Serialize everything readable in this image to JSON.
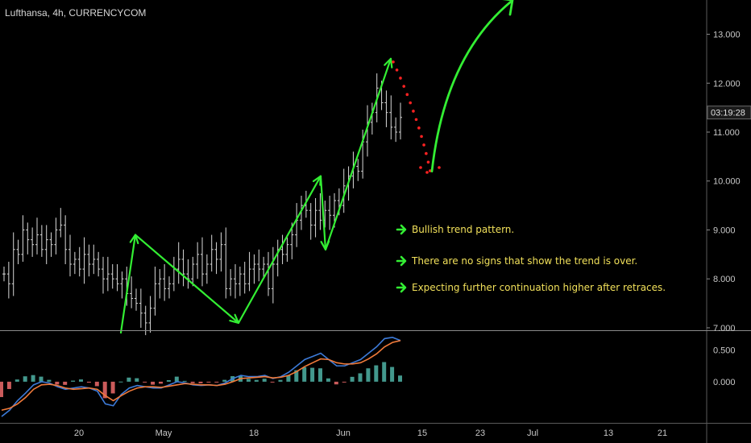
{
  "header": {
    "title": "Lufthansa, 4h, CURRENCYCOM"
  },
  "colors": {
    "background": "#000000",
    "price_bars": "#d9d9d9",
    "trend_lines": "#33ee33",
    "projection_dots": "#ff2222",
    "macd_line": "#3d7bd9",
    "signal_line": "#f07a3a",
    "hist_pos": "#4fb3a6",
    "hist_neg": "#ef6b6b",
    "hist_weak": "#ffffff",
    "note_text": "#f1e05a"
  },
  "price_badge": "03:19:28",
  "annotations": [
    {
      "icon": "green-right-arrow-icon",
      "text": "Bullish trend pattern."
    },
    {
      "icon": "green-right-arrow-icon",
      "text": "There are no signs that show the trend is over."
    },
    {
      "icon": "green-right-arrow-icon",
      "text": "Expecting further continuation higher after retraces."
    }
  ],
  "chart_data": [
    {
      "type": "bar",
      "subtype": "ohlc-price",
      "title": "Lufthansa, 4h, CURRENCYCOM",
      "ylim": [
        6.95,
        13.7
      ],
      "y_ticks": [
        "13.000",
        "12.000",
        "11.000",
        "10.000",
        "9.000",
        "8.000",
        "7.000"
      ],
      "x_ticks": [
        "20",
        "May",
        "18",
        "Jun",
        "15",
        "23",
        "Jul",
        "13",
        "21"
      ],
      "closes": [
        8.1,
        7.9,
        8.6,
        8.5,
        9.0,
        8.8,
        8.7,
        8.9,
        8.6,
        8.8,
        8.7,
        9.0,
        9.1,
        8.6,
        8.3,
        8.4,
        8.2,
        8.5,
        8.3,
        8.4,
        8.2,
        8.0,
        8.1,
        8.0,
        7.9,
        8.0,
        7.7,
        7.6,
        7.5,
        7.3,
        7.1,
        7.4,
        7.9,
        8.0,
        7.8,
        7.9,
        8.2,
        8.4,
        8.1,
        8.0,
        8.3,
        8.5,
        8.1,
        8.3,
        8.6,
        8.4,
        8.7,
        7.8,
        8.0,
        7.9,
        8.1,
        7.9,
        8.2,
        8.3,
        8.2,
        8.3,
        7.8,
        8.3,
        8.6,
        8.5,
        8.7,
        8.9,
        9.2,
        9.5,
        9.4,
        9.1,
        9.4,
        9.2,
        9.4,
        9.3,
        9.6,
        9.5,
        9.9,
        10.1,
        10.3,
        10.2,
        10.8,
        11.2,
        11.4,
        11.9,
        11.6,
        11.4,
        11.1,
        11.0,
        11.3
      ],
      "trend_pivots": [
        {
          "label": "Apr 27",
          "price": 6.9
        },
        {
          "label": "Apr 29",
          "price": 8.9
        },
        {
          "label": "May 15",
          "price": 7.1
        },
        {
          "label": "May 29",
          "price": 10.1
        },
        {
          "label": "May 31",
          "price": 8.6
        },
        {
          "label": "Jun 9",
          "price": 12.5
        }
      ],
      "projection": {
        "retrace_to": 10.1,
        "target_above": 13.6
      }
    },
    {
      "type": "line",
      "subtype": "macd",
      "ylim": [
        -0.65,
        0.8
      ],
      "y_ticks": [
        "0.500",
        "0.000"
      ],
      "series": [
        {
          "values": [
            -0.55,
            -0.45,
            -0.3,
            -0.18,
            -0.05,
            0.0,
            -0.02,
            -0.08,
            -0.12,
            -0.1,
            -0.08,
            -0.1,
            -0.15,
            -0.35,
            -0.38,
            -0.2,
            -0.1,
            -0.06,
            -0.08,
            -0.1,
            -0.1,
            -0.05,
            0.0,
            -0.02,
            -0.05,
            -0.06,
            -0.05,
            -0.06,
            -0.02,
            0.05,
            0.1,
            0.08,
            0.08,
            0.1,
            0.05,
            0.08,
            0.15,
            0.25,
            0.35,
            0.4,
            0.45,
            0.35,
            0.25,
            0.25,
            0.3,
            0.35,
            0.45,
            0.55,
            0.68,
            0.7,
            0.65
          ]
        },
        {
          "values": [
            -0.45,
            -0.42,
            -0.35,
            -0.25,
            -0.12,
            -0.05,
            -0.04,
            -0.06,
            -0.1,
            -0.12,
            -0.11,
            -0.1,
            -0.12,
            -0.22,
            -0.3,
            -0.22,
            -0.15,
            -0.1,
            -0.08,
            -0.08,
            -0.09,
            -0.07,
            -0.05,
            -0.03,
            -0.04,
            -0.05,
            -0.05,
            -0.06,
            -0.04,
            0.0,
            0.05,
            0.06,
            0.07,
            0.08,
            0.06,
            0.07,
            0.1,
            0.16,
            0.24,
            0.3,
            0.36,
            0.35,
            0.3,
            0.28,
            0.28,
            0.3,
            0.36,
            0.44,
            0.55,
            0.62,
            0.65
          ]
        }
      ]
    }
  ]
}
